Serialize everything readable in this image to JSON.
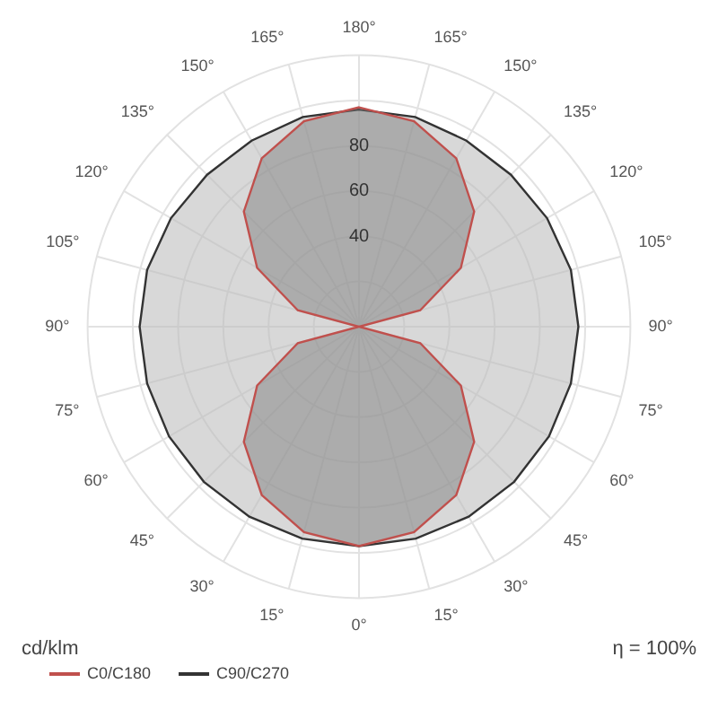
{
  "chart_data": {
    "type": "radar",
    "categories": [
      "180°",
      "165°",
      "150°",
      "135°",
      "120°",
      "105°",
      "90°",
      "75°",
      "60°",
      "45°",
      "30°",
      "15°",
      "0°",
      "15°",
      "30°",
      "45°",
      "60°",
      "75°",
      "90°",
      "105°",
      "120°",
      "135°",
      "150°",
      "165°"
    ],
    "series": [
      {
        "name": "C0/C180",
        "color": "#c0504d",
        "values": [
          97,
          94,
          86,
          72,
          52,
          28,
          0,
          28,
          52,
          72,
          86,
          94,
          97,
          94,
          86,
          72,
          52,
          28,
          0,
          28,
          52,
          72,
          86,
          94
        ]
      },
      {
        "name": "C90/C270",
        "color": "#333333",
        "values": [
          96,
          96,
          95,
          95,
          96,
          97,
          97,
          97,
          97,
          97,
          97,
          97,
          97,
          97,
          97,
          97,
          97,
          97,
          97,
          97,
          96,
          95,
          95,
          96
        ]
      }
    ],
    "ylim": [
      0,
      120
    ],
    "yticks": [
      40,
      60,
      80
    ],
    "ylabel": "cd/klm",
    "annotations": [
      "η = 100%"
    ],
    "legend": "bottom left",
    "marker": "none",
    "grid": true
  }
}
